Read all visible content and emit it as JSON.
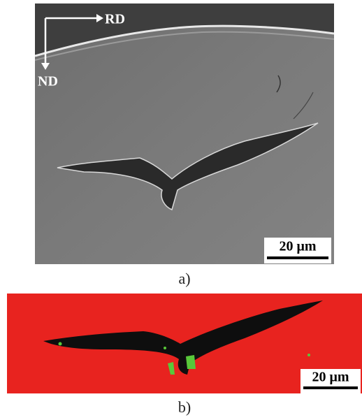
{
  "panels": [
    {
      "label": "a)",
      "axes": {
        "x": "RD",
        "y": "ND"
      },
      "scale_bar": "20 μm"
    },
    {
      "label": "b)",
      "scale_bar": "20 μm"
    }
  ]
}
